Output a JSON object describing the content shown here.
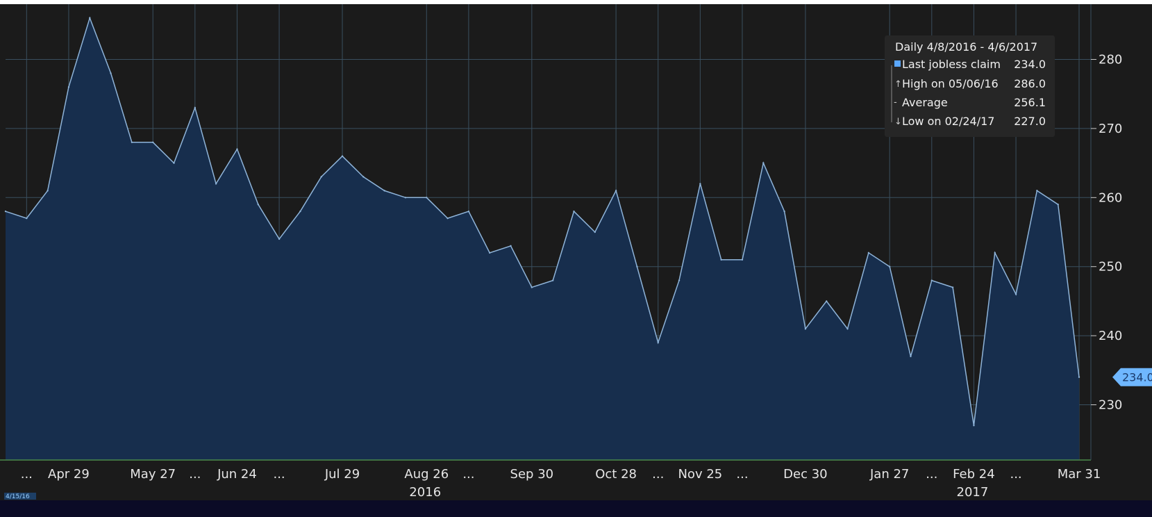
{
  "chart_data": {
    "type": "area",
    "x": [
      "4/8/16",
      "4/15/16",
      "4/22/16",
      "4/29/16",
      "5/6/16",
      "5/13/16",
      "5/20/16",
      "5/27/16",
      "6/3/16",
      "6/10/16",
      "6/17/16",
      "6/24/16",
      "7/1/16",
      "7/8/16",
      "7/15/16",
      "7/22/16",
      "7/29/16",
      "8/5/16",
      "8/12/16",
      "8/19/16",
      "8/26/16",
      "9/2/16",
      "9/9/16",
      "9/16/16",
      "9/23/16",
      "9/30/16",
      "10/7/16",
      "10/14/16",
      "10/21/16",
      "10/28/16",
      "11/4/16",
      "11/11/16",
      "11/18/16",
      "11/25/16",
      "12/2/16",
      "12/9/16",
      "12/16/16",
      "12/23/16",
      "12/30/16",
      "1/6/17",
      "1/13/17",
      "1/20/17",
      "1/27/17",
      "2/3/17",
      "2/10/17",
      "2/17/17",
      "2/24/17",
      "3/3/17",
      "3/10/17",
      "3/17/17",
      "3/24/17",
      "3/31/17"
    ],
    "values": [
      258,
      257,
      261,
      276,
      286,
      278,
      268,
      268,
      265,
      273,
      262,
      267,
      259,
      254,
      258,
      263,
      266,
      263,
      261,
      260,
      260,
      257,
      258,
      252,
      253,
      247,
      248,
      258,
      255,
      261,
      250,
      239,
      248,
      262,
      251,
      251,
      265,
      258,
      241,
      245,
      241,
      252,
      250,
      237,
      248,
      247,
      227,
      252,
      246,
      261,
      259,
      234
    ],
    "ylim": [
      222,
      288
    ],
    "yticks": [
      230,
      240,
      250,
      260,
      270,
      280
    ],
    "xtick_labels": [
      "...",
      "Apr 29",
      "May 27",
      "...",
      "Jun 24",
      "...",
      "Jul 29",
      "Aug 26",
      "...",
      "Sep 30",
      "Oct 28",
      "...",
      "Nov 25",
      "...",
      "Dec 30",
      "Jan 27",
      "...",
      "Feb 24",
      "...",
      "Mar 31"
    ],
    "year_labels": [
      "2016",
      "2017"
    ],
    "start_date_label": "4/15/16",
    "last_value_label": "234.0",
    "legend": {
      "title": "Daily 4/8/2016 - 4/6/2017",
      "rows": [
        {
          "label": "Last jobless claim",
          "value": "234.0"
        },
        {
          "label": "High on 05/06/16",
          "value": "286.0"
        },
        {
          "label": "Average",
          "value": "256.1"
        },
        {
          "label": "Low on 02/24/17",
          "value": "227.0"
        }
      ]
    },
    "grid": true,
    "legend_placement": "top-right",
    "colors": {
      "background": "#1b1b1b",
      "area_fill": "#172e4d",
      "line": "#8fb4d9",
      "grid": "#3a4f5f",
      "x_axis_line": "#4a8a4a",
      "bottom_bar": "#0b0b26",
      "last_label_bg": "#6fb7ff",
      "legend_bg": "#262626",
      "legend_square": "#5aa7ff"
    }
  }
}
